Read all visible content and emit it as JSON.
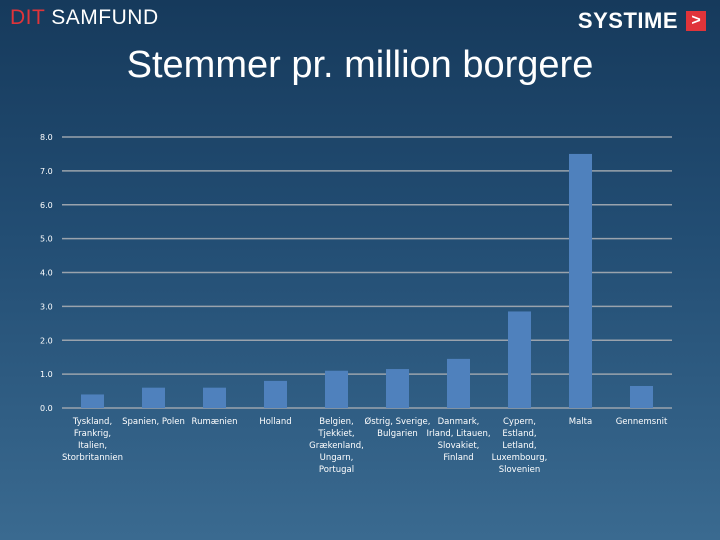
{
  "header": {
    "brand_left_accent": "DIT",
    "brand_left_main": " SAMFUND",
    "brand_right": "SYSTIME",
    "brand_right_arrow": ">"
  },
  "colors": {
    "bar": "#4f81bd",
    "grid": "#9aa3ad",
    "accent": "#e0343a"
  },
  "chart_data": {
    "type": "bar",
    "title": "Stemmer pr. million borgere",
    "xlabel": "",
    "ylabel": "",
    "ylim": [
      0,
      8
    ],
    "yticks": [
      "0.0",
      "1.0",
      "2.0",
      "3.0",
      "4.0",
      "5.0",
      "6.0",
      "7.0",
      "8.0"
    ],
    "grid": true,
    "categories": [
      [
        "Tyskland,",
        "Frankrig,",
        "Italien,",
        "Storbritannien"
      ],
      [
        "Spanien, Polen"
      ],
      [
        "Rumænien"
      ],
      [
        "Holland"
      ],
      [
        "Belgien,",
        "Tjekkiet,",
        "Grækenland,",
        "Ungarn,",
        "Portugal"
      ],
      [
        "Østrig, Sverige,",
        "Bulgarien"
      ],
      [
        "Danmark,",
        "Irland, Litauen,",
        "Slovakiet,",
        "Finland"
      ],
      [
        "Cypern,",
        "Estland,",
        "Letland,",
        "Luxembourg,",
        "Slovenien"
      ],
      [
        "Malta"
      ],
      [
        "Gennemsnit"
      ]
    ],
    "values": [
      0.4,
      0.6,
      0.6,
      0.8,
      1.1,
      1.15,
      1.45,
      2.85,
      7.5,
      0.65
    ]
  }
}
